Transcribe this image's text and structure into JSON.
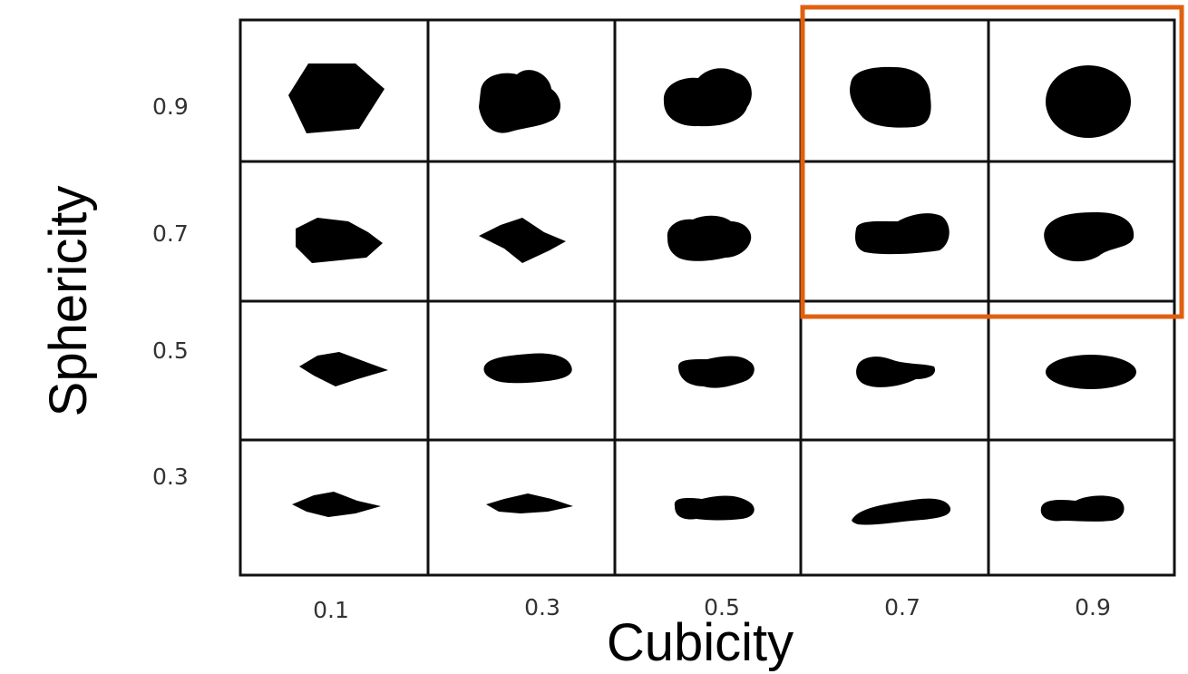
{
  "chart_data": {
    "type": "table",
    "x_axis": {
      "label": "Cubicity",
      "ticks": [
        "0.1",
        "0.3",
        "0.5",
        "0.7",
        "0.9"
      ]
    },
    "y_axis": {
      "label": "Sphericity",
      "ticks": [
        "0.9",
        "0.7",
        "0.5",
        "0.3"
      ]
    },
    "cells": [
      {
        "cubicity": 0.1,
        "sphericity": 0.9,
        "shape": "hexagonal-angular"
      },
      {
        "cubicity": 0.3,
        "sphericity": 0.9,
        "shape": "irregular-rounded"
      },
      {
        "cubicity": 0.5,
        "sphericity": 0.9,
        "shape": "irregular-rounded"
      },
      {
        "cubicity": 0.7,
        "sphericity": 0.9,
        "shape": "rounded"
      },
      {
        "cubicity": 0.9,
        "sphericity": 0.9,
        "shape": "near-circular"
      },
      {
        "cubicity": 0.1,
        "sphericity": 0.7,
        "shape": "angular"
      },
      {
        "cubicity": 0.3,
        "sphericity": 0.7,
        "shape": "angular"
      },
      {
        "cubicity": 0.5,
        "sphericity": 0.7,
        "shape": "irregular-rounded"
      },
      {
        "cubicity": 0.7,
        "sphericity": 0.7,
        "shape": "elongated-rounded"
      },
      {
        "cubicity": 0.9,
        "sphericity": 0.7,
        "shape": "rounded"
      },
      {
        "cubicity": 0.1,
        "sphericity": 0.5,
        "shape": "flat-angular"
      },
      {
        "cubicity": 0.3,
        "sphericity": 0.5,
        "shape": "flat-irregular"
      },
      {
        "cubicity": 0.5,
        "sphericity": 0.5,
        "shape": "flat-irregular"
      },
      {
        "cubicity": 0.7,
        "sphericity": 0.5,
        "shape": "flat-rounded"
      },
      {
        "cubicity": 0.9,
        "sphericity": 0.5,
        "shape": "flat-ellipse"
      },
      {
        "cubicity": 0.1,
        "sphericity": 0.3,
        "shape": "thin-angular"
      },
      {
        "cubicity": 0.3,
        "sphericity": 0.3,
        "shape": "thin-angular"
      },
      {
        "cubicity": 0.5,
        "sphericity": 0.3,
        "shape": "thin-irregular"
      },
      {
        "cubicity": 0.7,
        "sphericity": 0.3,
        "shape": "thin-elongated"
      },
      {
        "cubicity": 0.9,
        "sphericity": 0.3,
        "shape": "thin-rounded"
      }
    ],
    "highlight": {
      "cubicity": [
        "0.7",
        "0.9"
      ],
      "sphericity": [
        "0.9",
        "0.7"
      ],
      "color": "#e06010"
    }
  }
}
